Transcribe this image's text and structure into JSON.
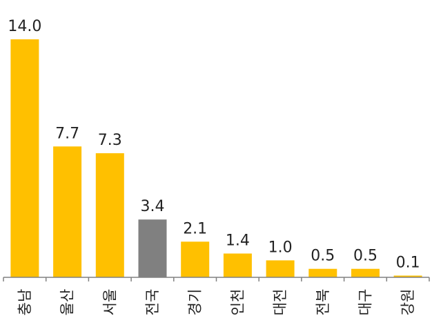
{
  "chart_data": {
    "type": "bar",
    "categories": [
      "충남",
      "울산",
      "서울",
      "전국",
      "경기",
      "인천",
      "대전",
      "전북",
      "대구",
      "강원"
    ],
    "values": [
      14.0,
      7.7,
      7.3,
      3.4,
      2.1,
      1.4,
      1.0,
      0.5,
      0.5,
      0.1
    ],
    "value_labels": [
      "14.0",
      "7.7",
      "7.3",
      "3.4",
      "2.1",
      "1.4",
      "1.0",
      "0.5",
      "0.5",
      "0.1"
    ],
    "highlight_category": "전국",
    "title": "",
    "xlabel": "",
    "ylabel": "",
    "ylim": [
      0,
      14.0
    ],
    "grid": false,
    "legend": "none",
    "colors": {
      "bar": "#FFC000",
      "highlight": "#808080",
      "axis": "#808080",
      "text": "#222222"
    }
  }
}
